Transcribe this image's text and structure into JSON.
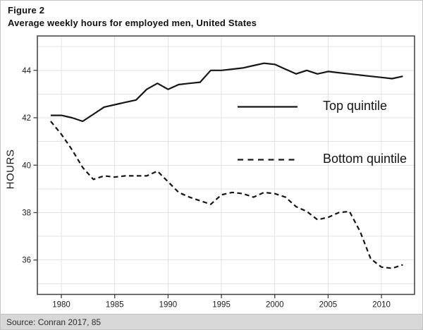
{
  "figure": {
    "label": "Figure 2",
    "title": "Average weekly hours for employed men, United States"
  },
  "source": {
    "text": "Source: Conran 2017, 85",
    "bar_color": "#d7d7d7"
  },
  "colors": {
    "line": "#161616",
    "axis": "#3f3f3f",
    "grid": "#e3e3e3",
    "tick_label": "#1d1d1d",
    "background": "#ffffff"
  },
  "chart_data": {
    "type": "line",
    "title": "Average weekly hours for employed men, United States",
    "xlabel": "",
    "ylabel": "HOURS",
    "x": [
      1979,
      1980,
      1981,
      1982,
      1983,
      1984,
      1985,
      1986,
      1987,
      1988,
      1989,
      1990,
      1991,
      1992,
      1993,
      1994,
      1995,
      1996,
      1997,
      1998,
      1999,
      2000,
      2001,
      2002,
      2003,
      2004,
      2005,
      2006,
      2007,
      2008,
      2009,
      2010,
      2011,
      2012
    ],
    "series": [
      {
        "name": "Top quintile",
        "style": "solid",
        "values": [
          42.1,
          42.1,
          42.0,
          41.85,
          42.15,
          42.45,
          42.55,
          42.65,
          42.75,
          43.2,
          43.45,
          43.2,
          43.4,
          43.45,
          43.5,
          44.0,
          44.0,
          44.05,
          44.1,
          44.2,
          44.3,
          44.25,
          44.05,
          43.85,
          44.0,
          43.85,
          43.95,
          43.9,
          43.85,
          43.8,
          43.75,
          43.7,
          43.65,
          43.75
        ]
      },
      {
        "name": "Bottom quintile",
        "style": "dashed",
        "values": [
          41.85,
          41.3,
          40.65,
          39.9,
          39.4,
          39.55,
          39.5,
          39.55,
          39.55,
          39.55,
          39.75,
          39.3,
          38.85,
          38.65,
          38.5,
          38.35,
          38.75,
          38.85,
          38.8,
          38.65,
          38.85,
          38.8,
          38.65,
          38.25,
          38.05,
          37.7,
          37.8,
          38.0,
          38.05,
          37.2,
          36.05,
          35.7,
          35.65,
          35.8
        ]
      }
    ],
    "x_ticks": [
      1980,
      1985,
      1990,
      1995,
      2000,
      2005,
      2010
    ],
    "y_ticks": [
      36,
      38,
      40,
      42,
      44
    ],
    "xlim": [
      1977.75,
      2013.1
    ],
    "ylim": [
      34.55,
      45.45
    ],
    "grid": {
      "horizontal_every": 1,
      "vertical_at_x_ticks": true,
      "visible": true
    },
    "legend": {
      "position": "inside-right"
    }
  }
}
